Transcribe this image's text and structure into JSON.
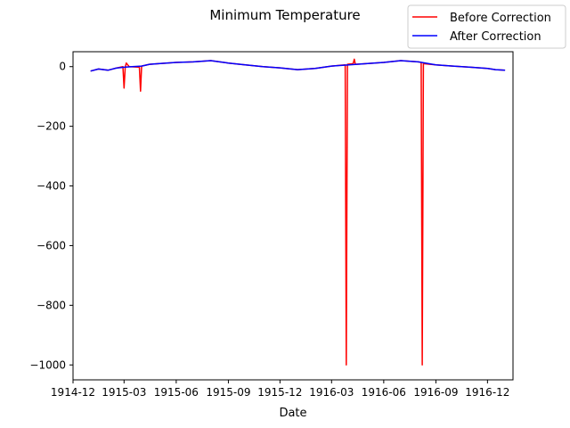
{
  "chart_data": {
    "type": "line",
    "title": "Minimum Temperature",
    "xlabel": "Date",
    "ylabel": "",
    "x_axis_type": "date",
    "xlim": [
      "1914-12-01",
      "1917-01-15"
    ],
    "ylim": [
      -1050,
      50
    ],
    "x_ticks": [
      "1914-12-01",
      "1915-03-01",
      "1915-06-01",
      "1915-09-01",
      "1915-12-01",
      "1916-03-01",
      "1916-06-01",
      "1916-09-01",
      "1916-12-01"
    ],
    "x_tick_labels": [
      "1914-12",
      "1915-03",
      "1915-06",
      "1915-09",
      "1915-12",
      "1916-03",
      "1916-06",
      "1916-09",
      "1916-12"
    ],
    "y_ticks": [
      0,
      -200,
      -400,
      -600,
      -800,
      -1000
    ],
    "y_tick_labels": [
      "0",
      "−200",
      "−400",
      "−600",
      "−800",
      "−1000"
    ],
    "grid": false,
    "legend_position": "upper right",
    "series": [
      {
        "name": "Before Correction",
        "color": "#ff0000",
        "points": [
          [
            "1915-01-01",
            -15
          ],
          [
            "1915-01-15",
            -8
          ],
          [
            "1915-02-01",
            -12
          ],
          [
            "1915-02-15",
            -5
          ],
          [
            "1915-02-27",
            0
          ],
          [
            "1915-03-01",
            -72
          ],
          [
            "1915-03-03",
            -2
          ],
          [
            "1915-03-05",
            12
          ],
          [
            "1915-03-10",
            0
          ],
          [
            "1915-03-28",
            -2
          ],
          [
            "1915-03-30",
            -82
          ],
          [
            "1915-04-01",
            2
          ],
          [
            "1915-04-15",
            8
          ],
          [
            "1915-05-01",
            10
          ],
          [
            "1915-06-01",
            14
          ],
          [
            "1915-07-01",
            16
          ],
          [
            "1915-08-01",
            20
          ],
          [
            "1915-09-01",
            12
          ],
          [
            "1915-10-01",
            6
          ],
          [
            "1915-11-01",
            0
          ],
          [
            "1915-12-01",
            -4
          ],
          [
            "1916-01-01",
            -10
          ],
          [
            "1916-02-01",
            -6
          ],
          [
            "1916-03-01",
            2
          ],
          [
            "1916-03-25",
            6
          ],
          [
            "1916-03-27",
            -1000
          ],
          [
            "1916-03-29",
            8
          ],
          [
            "1916-04-08",
            10
          ],
          [
            "1916-04-10",
            25
          ],
          [
            "1916-04-12",
            8
          ],
          [
            "1916-05-01",
            10
          ],
          [
            "1916-06-01",
            14
          ],
          [
            "1916-07-01",
            20
          ],
          [
            "1916-08-01",
            16
          ],
          [
            "1916-08-06",
            14
          ],
          [
            "1916-08-08",
            -1000
          ],
          [
            "1916-08-10",
            10
          ],
          [
            "1916-09-01",
            6
          ],
          [
            "1916-10-01",
            2
          ],
          [
            "1916-11-01",
            -2
          ],
          [
            "1916-12-01",
            -6
          ],
          [
            "1916-12-15",
            -10
          ],
          [
            "1917-01-01",
            -12
          ]
        ]
      },
      {
        "name": "After Correction",
        "color": "#0000ff",
        "points": [
          [
            "1915-01-01",
            -15
          ],
          [
            "1915-01-15",
            -8
          ],
          [
            "1915-02-01",
            -12
          ],
          [
            "1915-02-15",
            -5
          ],
          [
            "1915-03-01",
            -2
          ],
          [
            "1915-03-15",
            0
          ],
          [
            "1915-04-01",
            2
          ],
          [
            "1915-04-15",
            8
          ],
          [
            "1915-05-01",
            10
          ],
          [
            "1915-06-01",
            14
          ],
          [
            "1915-07-01",
            16
          ],
          [
            "1915-08-01",
            20
          ],
          [
            "1915-09-01",
            12
          ],
          [
            "1915-10-01",
            6
          ],
          [
            "1915-11-01",
            0
          ],
          [
            "1915-12-01",
            -4
          ],
          [
            "1916-01-01",
            -10
          ],
          [
            "1916-02-01",
            -6
          ],
          [
            "1916-03-01",
            2
          ],
          [
            "1916-04-01",
            6
          ],
          [
            "1916-05-01",
            10
          ],
          [
            "1916-06-01",
            14
          ],
          [
            "1916-07-01",
            20
          ],
          [
            "1916-08-01",
            16
          ],
          [
            "1916-09-01",
            6
          ],
          [
            "1916-10-01",
            2
          ],
          [
            "1916-11-01",
            -2
          ],
          [
            "1916-12-01",
            -6
          ],
          [
            "1916-12-15",
            -10
          ],
          [
            "1917-01-01",
            -12
          ]
        ]
      }
    ]
  }
}
